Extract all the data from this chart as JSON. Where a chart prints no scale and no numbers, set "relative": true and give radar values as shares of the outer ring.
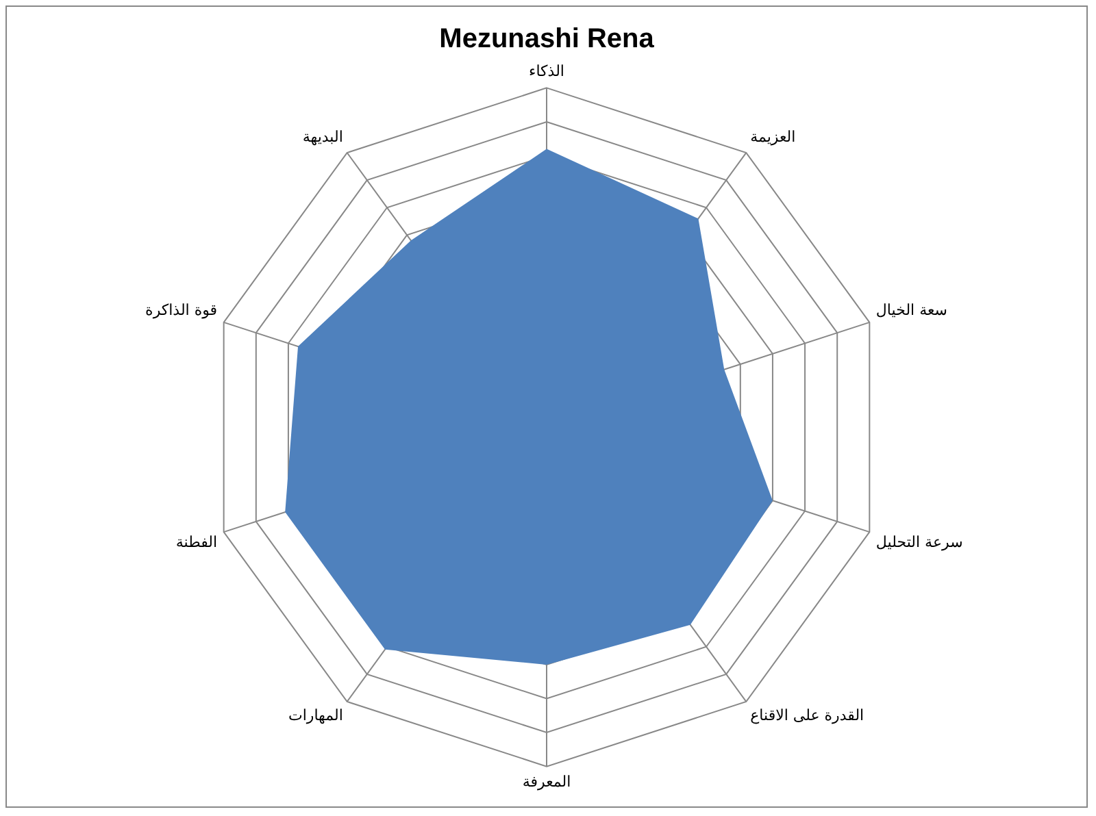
{
  "chart_data": {
    "type": "radar",
    "title": "Mezunashi Rena",
    "relative": true,
    "categories": [
      "الذكاء",
      "العزيمة",
      "سعة الخيال",
      "سرعة التحليل",
      "القدرة على الاقناع",
      "المعرفة",
      "المهارات",
      "الفطنة",
      "قوة الذاكرة",
      "البديهة"
    ],
    "series": [
      {
        "color": "#4f81bd",
        "values": [
          0.82,
          0.76,
          0.55,
          0.7,
          0.72,
          0.7,
          0.81,
          0.81,
          0.77,
          0.68
        ]
      }
    ],
    "legend": false,
    "marker": "none"
  }
}
